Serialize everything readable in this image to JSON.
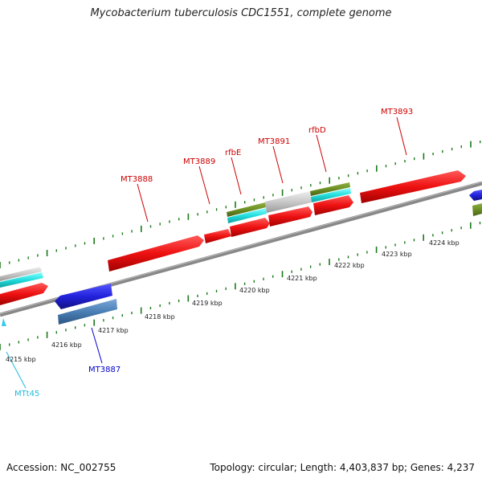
{
  "title": "Mycobacterium tuberculosis CDC1551, complete genome",
  "footer": {
    "accession": "Accession: NC_002755",
    "summary": "Topology: circular; Length: 4,403,837 bp; Genes: 4,237"
  },
  "scale_labels": [
    "4215 kbp",
    "4216 kbp",
    "4217 kbp",
    "4218 kbp",
    "4219 kbp",
    "4220 kbp",
    "4221 kbp",
    "4222 kbp",
    "4223 kbp",
    "4224 kbp"
  ],
  "gene_labels": [
    {
      "text": "MT3893",
      "color": "#cc0000"
    },
    {
      "text": "rfbD",
      "color": "#cc0000"
    },
    {
      "text": "MT3891",
      "color": "#cc0000"
    },
    {
      "text": "rfbE",
      "color": "#cc0000"
    },
    {
      "text": "MT3889",
      "color": "#cc0000"
    },
    {
      "text": "MT3888",
      "color": "#cc0000"
    },
    {
      "text": "MT3887",
      "color": "#0000cc"
    },
    {
      "text": "MTt45",
      "color": "#22bbdd"
    }
  ],
  "colors": {
    "cds_forward": "#ee1111",
    "cds_reverse": "#2222dd",
    "rna": "#33dddd",
    "misc": "#6b8e23",
    "gray_feature": "#c8c8c8",
    "steel_feature": "#4a7fb5",
    "backbone": "#888888",
    "ticks": "#1a7a1a"
  }
}
